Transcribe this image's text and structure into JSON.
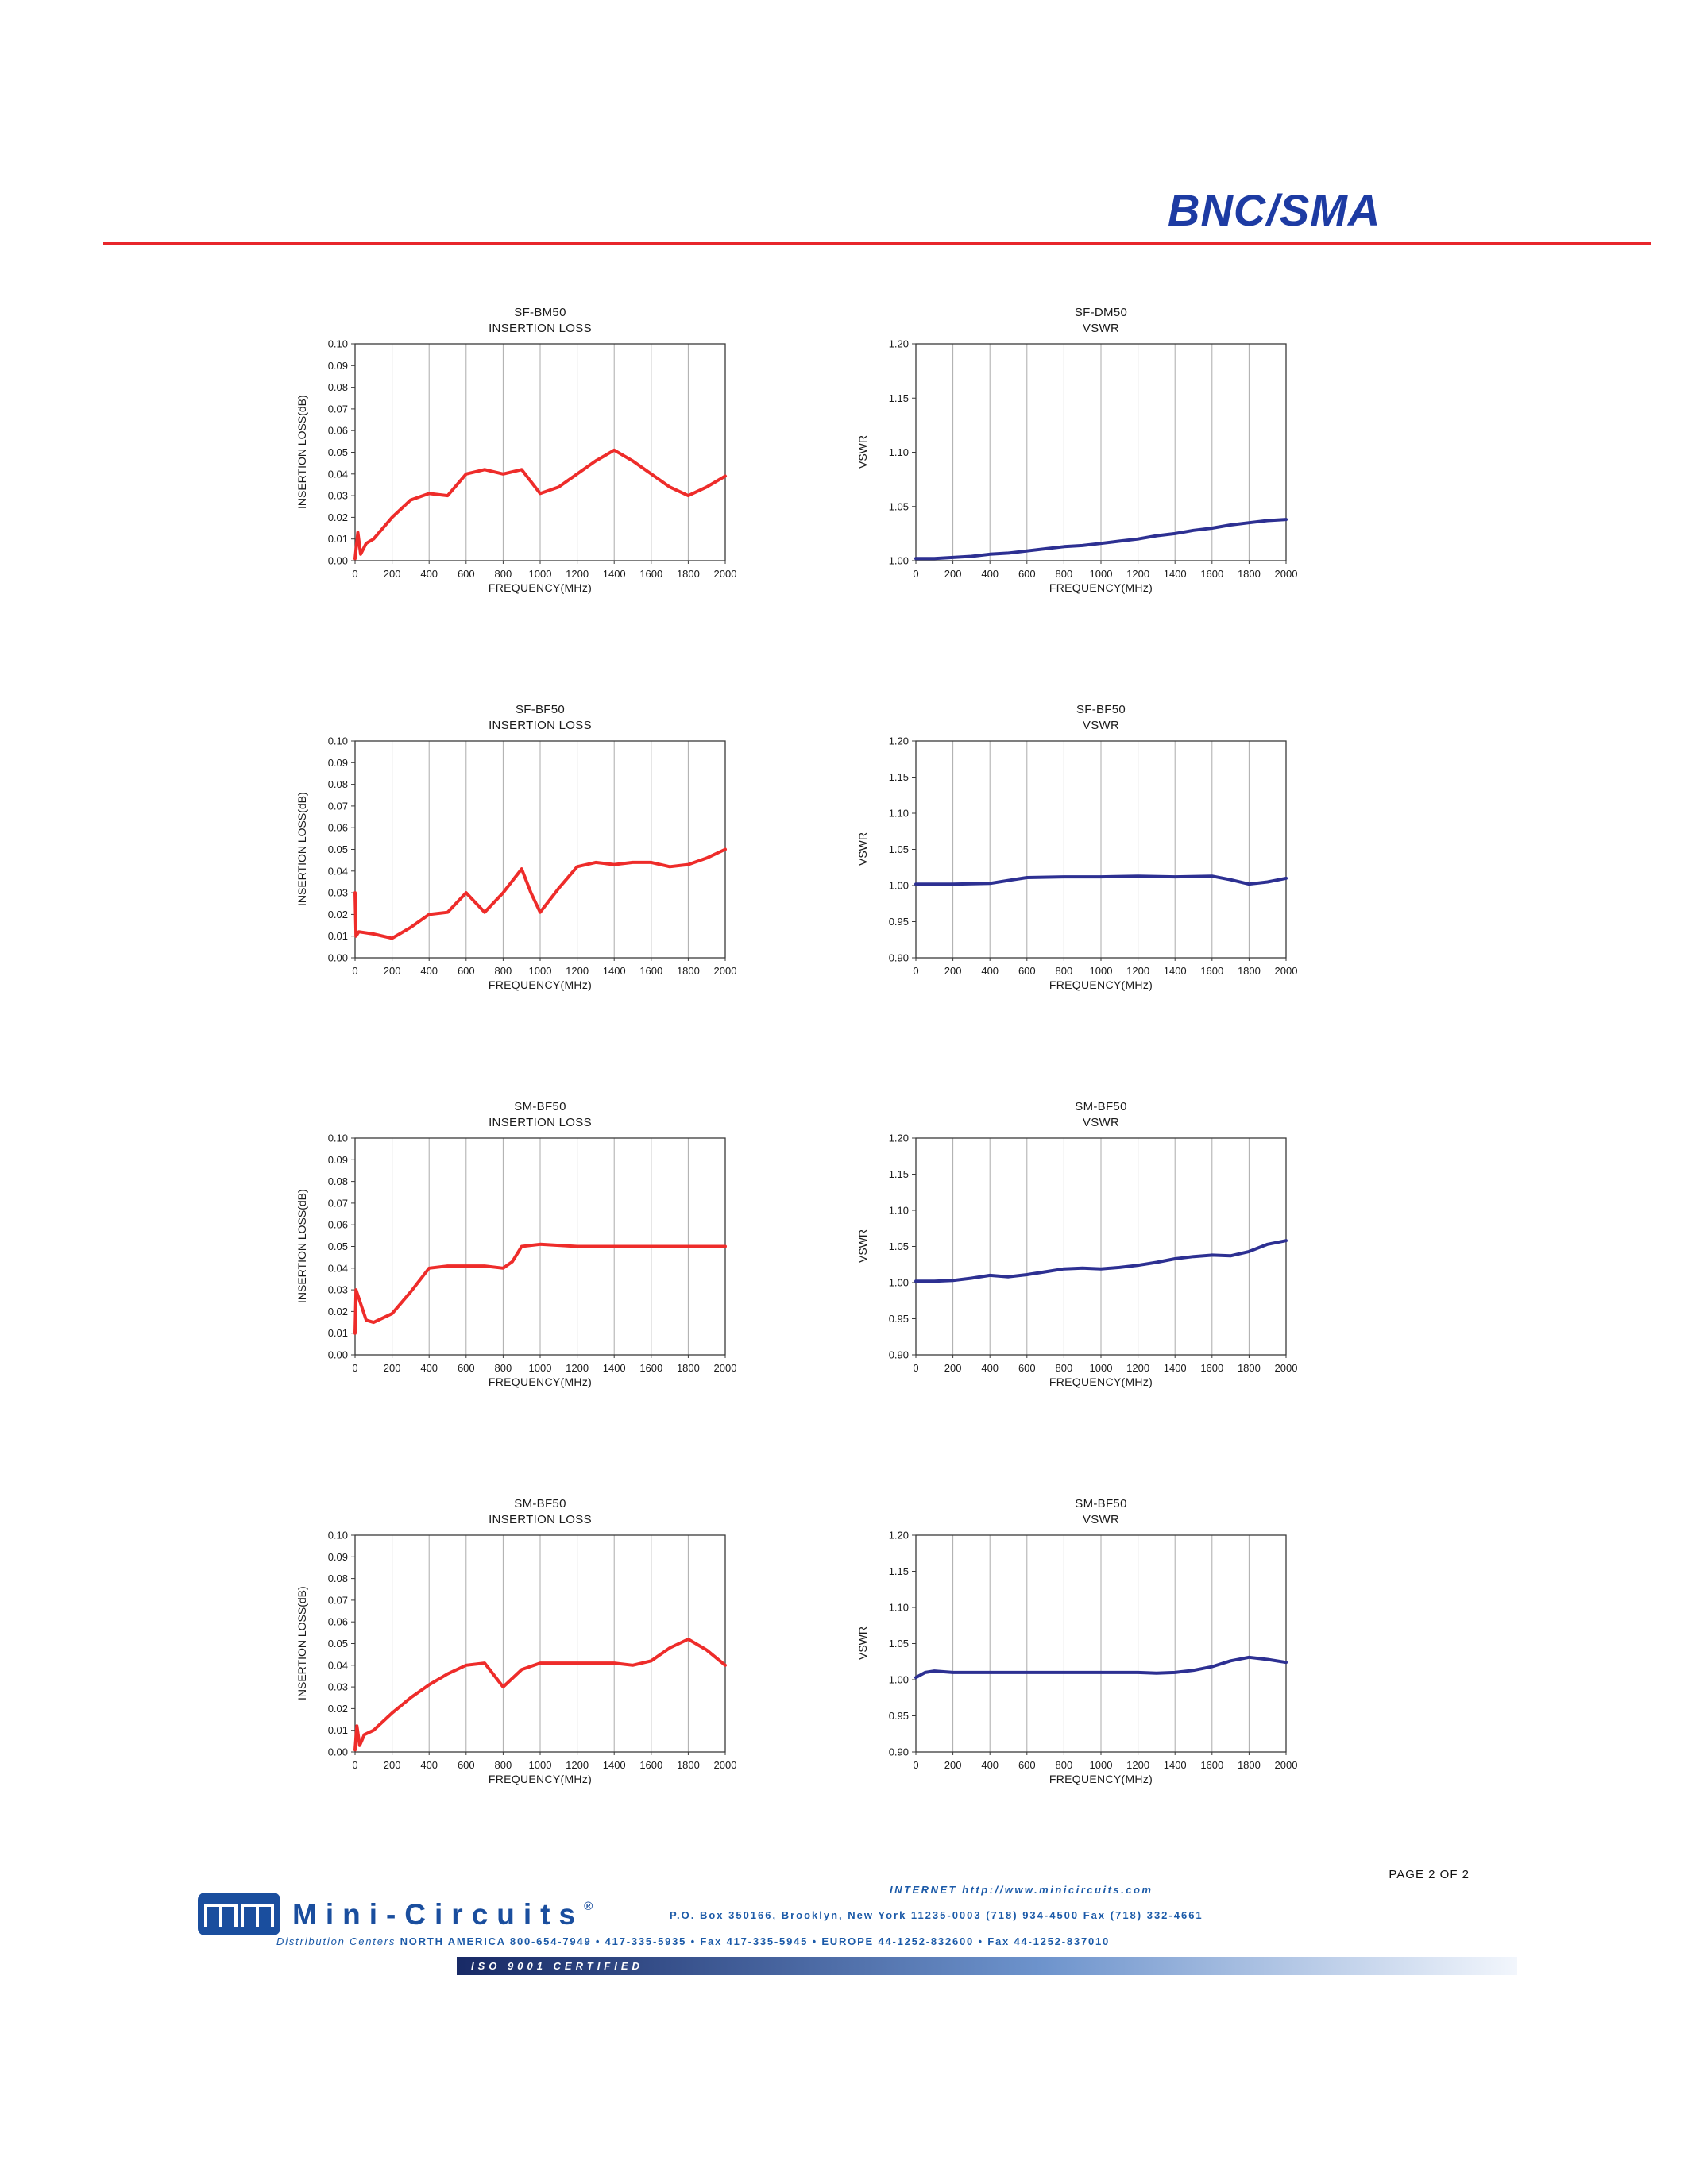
{
  "page": {
    "header_title": "BNC/SMA",
    "page_label": "PAGE 2 OF 2"
  },
  "colors": {
    "accent_red": "#e8262b",
    "title_blue": "#1d3ba3",
    "footer_blue": "#1b5aa8",
    "logo_blue": "#1a4e9e",
    "insertion_loss_line": "#ee2c2a",
    "vswr_line": "#2d3092",
    "iso_gradient_start": "#182a66",
    "iso_gradient_mid": "#6d93cc",
    "iso_gradient_end": "#f2f6fc"
  },
  "footer": {
    "brand": "Mini-Circuits",
    "registered": "®",
    "internet": "INTERNET  http://www.minicircuits.com",
    "address": "P.O. Box 350166, Brooklyn, New York 11235-0003  (718) 934-4500  Fax (718) 332-4661",
    "distribution_label": "Distribution Centers ",
    "distribution": "NORTH AMERICA 800-654-7949  •  417-335-5935  •  Fax 417-335-5945  •  EUROPE 44-1252-832600  •  Fax 44-1252-837010",
    "iso": "ISO 9001  CERTIFIED"
  },
  "chart_data": [
    {
      "type": "line",
      "title": "SF-BM50",
      "subtitle": "INSERTION LOSS",
      "xlabel": "FREQUENCY(MHz)",
      "ylabel": "INSERTION LOSS(dB)",
      "xlim": [
        0,
        2000
      ],
      "ylim": [
        0.0,
        0.1
      ],
      "xticks": [
        "0",
        "200",
        "400",
        "600",
        "800",
        "1000",
        "1200",
        "1400",
        "1600",
        "1800",
        "2000"
      ],
      "yticks": [
        "0.00",
        "0.01",
        "0.02",
        "0.03",
        "0.04",
        "0.05",
        "0.06",
        "0.07",
        "0.08",
        "0.09",
        "0.10"
      ],
      "grid": "vertical",
      "legend": "none",
      "line_color": "#ee2c2a",
      "x": [
        0,
        15,
        30,
        60,
        100,
        200,
        300,
        400,
        500,
        600,
        700,
        800,
        900,
        1000,
        1100,
        1200,
        1300,
        1400,
        1500,
        1600,
        1700,
        1800,
        1900,
        2000
      ],
      "y": [
        0.001,
        0.013,
        0.003,
        0.008,
        0.01,
        0.02,
        0.028,
        0.031,
        0.03,
        0.04,
        0.042,
        0.04,
        0.042,
        0.031,
        0.034,
        0.04,
        0.046,
        0.051,
        0.046,
        0.04,
        0.034,
        0.03,
        0.034,
        0.039
      ]
    },
    {
      "type": "line",
      "title": "SF-DM50",
      "subtitle": "VSWR",
      "xlabel": "FREQUENCY(MHz)",
      "ylabel": "VSWR",
      "xlim": [
        0,
        2000
      ],
      "ylim": [
        1.0,
        1.2
      ],
      "xticks": [
        "0",
        "200",
        "400",
        "600",
        "800",
        "1000",
        "1200",
        "1400",
        "1600",
        "1800",
        "2000"
      ],
      "yticks": [
        "1.00",
        "1.05",
        "1.10",
        "1.15",
        "1.20"
      ],
      "grid": "vertical",
      "legend": "none",
      "line_color": "#2d3092",
      "x": [
        0,
        100,
        200,
        300,
        400,
        500,
        600,
        700,
        800,
        900,
        1000,
        1100,
        1200,
        1300,
        1400,
        1500,
        1600,
        1700,
        1800,
        1900,
        2000
      ],
      "y": [
        1.002,
        1.002,
        1.003,
        1.004,
        1.006,
        1.007,
        1.009,
        1.011,
        1.013,
        1.014,
        1.016,
        1.018,
        1.02,
        1.023,
        1.025,
        1.028,
        1.03,
        1.033,
        1.035,
        1.037,
        1.038
      ]
    },
    {
      "type": "line",
      "title": "SF-BF50",
      "subtitle": "INSERTION LOSS",
      "xlabel": "FREQUENCY(MHz)",
      "ylabel": "INSERTION LOSS(dB)",
      "xlim": [
        0,
        2000
      ],
      "ylim": [
        0.0,
        0.1
      ],
      "xticks": [
        "0",
        "200",
        "400",
        "600",
        "800",
        "1000",
        "1200",
        "1400",
        "1600",
        "1800",
        "2000"
      ],
      "yticks": [
        "0.00",
        "0.01",
        "0.02",
        "0.03",
        "0.04",
        "0.05",
        "0.06",
        "0.07",
        "0.08",
        "0.09",
        "0.10"
      ],
      "grid": "vertical",
      "legend": "none",
      "line_color": "#ee2c2a",
      "x": [
        0,
        5,
        20,
        100,
        200,
        300,
        400,
        500,
        600,
        700,
        800,
        900,
        950,
        1000,
        1100,
        1200,
        1300,
        1400,
        1500,
        1600,
        1700,
        1800,
        1900,
        2000
      ],
      "y": [
        0.03,
        0.01,
        0.012,
        0.011,
        0.009,
        0.014,
        0.02,
        0.021,
        0.03,
        0.021,
        0.03,
        0.041,
        0.03,
        0.021,
        0.032,
        0.042,
        0.044,
        0.043,
        0.044,
        0.044,
        0.042,
        0.043,
        0.046,
        0.05
      ]
    },
    {
      "type": "line",
      "title": "SF-BF50",
      "subtitle": "VSWR",
      "xlabel": "FREQUENCY(MHz)",
      "ylabel": "VSWR",
      "xlim": [
        0,
        2000
      ],
      "ylim": [
        0.9,
        1.2
      ],
      "xticks": [
        "0",
        "200",
        "400",
        "600",
        "800",
        "1000",
        "1200",
        "1400",
        "1600",
        "1800",
        "2000"
      ],
      "yticks": [
        "0.90",
        "0.95",
        "1.00",
        "1.05",
        "1.10",
        "1.15",
        "1.20"
      ],
      "grid": "vertical",
      "legend": "none",
      "line_color": "#2d3092",
      "x": [
        0,
        200,
        400,
        500,
        600,
        800,
        1000,
        1200,
        1400,
        1600,
        1700,
        1800,
        1900,
        2000
      ],
      "y": [
        1.002,
        1.002,
        1.003,
        1.007,
        1.011,
        1.012,
        1.012,
        1.013,
        1.012,
        1.013,
        1.008,
        1.002,
        1.005,
        1.01
      ]
    },
    {
      "type": "line",
      "title": "SM-BF50",
      "subtitle": "INSERTION LOSS",
      "xlabel": "FREQUENCY(MHz)",
      "ylabel": "INSERTION LOSS(dB)",
      "xlim": [
        0,
        2000
      ],
      "ylim": [
        0.0,
        0.1
      ],
      "xticks": [
        "0",
        "200",
        "400",
        "600",
        "800",
        "1000",
        "1200",
        "1400",
        "1600",
        "1800",
        "2000"
      ],
      "yticks": [
        "0.00",
        "0.01",
        "0.02",
        "0.03",
        "0.04",
        "0.05",
        "0.06",
        "0.07",
        "0.08",
        "0.09",
        "0.10"
      ],
      "grid": "vertical",
      "legend": "none",
      "line_color": "#ee2c2a",
      "x": [
        0,
        5,
        60,
        100,
        200,
        300,
        400,
        500,
        600,
        700,
        800,
        850,
        900,
        1000,
        1200,
        1400,
        1600,
        1800,
        2000
      ],
      "y": [
        0.01,
        0.03,
        0.016,
        0.015,
        0.019,
        0.029,
        0.04,
        0.041,
        0.041,
        0.041,
        0.04,
        0.043,
        0.05,
        0.051,
        0.05,
        0.05,
        0.05,
        0.05,
        0.05
      ]
    },
    {
      "type": "line",
      "title": "SM-BF50",
      "subtitle": "VSWR",
      "xlabel": "FREQUENCY(MHz)",
      "ylabel": "VSWR",
      "xlim": [
        0,
        2000
      ],
      "ylim": [
        0.9,
        1.2
      ],
      "xticks": [
        "0",
        "200",
        "400",
        "600",
        "800",
        "1000",
        "1200",
        "1400",
        "1600",
        "1800",
        "2000"
      ],
      "yticks": [
        "0.90",
        "0.95",
        "1.00",
        "1.05",
        "1.10",
        "1.15",
        "1.20"
      ],
      "grid": "vertical",
      "legend": "none",
      "line_color": "#2d3092",
      "x": [
        0,
        100,
        200,
        300,
        400,
        500,
        600,
        700,
        800,
        900,
        1000,
        1100,
        1200,
        1300,
        1400,
        1500,
        1600,
        1700,
        1800,
        1900,
        2000
      ],
      "y": [
        1.002,
        1.002,
        1.003,
        1.006,
        1.01,
        1.008,
        1.011,
        1.015,
        1.019,
        1.02,
        1.019,
        1.021,
        1.024,
        1.028,
        1.033,
        1.036,
        1.038,
        1.037,
        1.043,
        1.053,
        1.058
      ]
    },
    {
      "type": "line",
      "title": "SM-BF50",
      "subtitle": "INSERTION LOSS",
      "xlabel": "FREQUENCY(MHz)",
      "ylabel": "INSERTION LOSS(dB)",
      "xlim": [
        0,
        2000
      ],
      "ylim": [
        0.0,
        0.1
      ],
      "xticks": [
        "0",
        "200",
        "400",
        "600",
        "800",
        "1000",
        "1200",
        "1400",
        "1600",
        "1800",
        "2000"
      ],
      "yticks": [
        "0.00",
        "0.01",
        "0.02",
        "0.03",
        "0.04",
        "0.05",
        "0.06",
        "0.07",
        "0.08",
        "0.09",
        "0.10"
      ],
      "grid": "vertical",
      "legend": "none",
      "line_color": "#ee2c2a",
      "x": [
        0,
        10,
        25,
        50,
        100,
        200,
        300,
        400,
        500,
        600,
        700,
        800,
        900,
        1000,
        1100,
        1200,
        1300,
        1400,
        1500,
        1600,
        1700,
        1800,
        1900,
        2000
      ],
      "y": [
        0.001,
        0.012,
        0.003,
        0.008,
        0.01,
        0.018,
        0.025,
        0.031,
        0.036,
        0.04,
        0.041,
        0.03,
        0.038,
        0.041,
        0.041,
        0.041,
        0.041,
        0.041,
        0.04,
        0.042,
        0.048,
        0.052,
        0.047,
        0.04
      ]
    },
    {
      "type": "line",
      "title": "SM-BF50",
      "subtitle": "VSWR",
      "xlabel": "FREQUENCY(MHz)",
      "ylabel": "VSWR",
      "xlim": [
        0,
        2000
      ],
      "ylim": [
        0.9,
        1.2
      ],
      "xticks": [
        "0",
        "200",
        "400",
        "600",
        "800",
        "1000",
        "1200",
        "1400",
        "1600",
        "1800",
        "2000"
      ],
      "yticks": [
        "0.90",
        "0.95",
        "1.00",
        "1.05",
        "1.10",
        "1.15",
        "1.20"
      ],
      "grid": "vertical",
      "legend": "none",
      "line_color": "#2d3092",
      "x": [
        0,
        50,
        100,
        200,
        400,
        600,
        800,
        1000,
        1200,
        1300,
        1400,
        1500,
        1600,
        1700,
        1800,
        1900,
        2000
      ],
      "y": [
        1.003,
        1.01,
        1.012,
        1.01,
        1.01,
        1.01,
        1.01,
        1.01,
        1.01,
        1.009,
        1.01,
        1.013,
        1.018,
        1.026,
        1.031,
        1.028,
        1.024
      ]
    }
  ]
}
